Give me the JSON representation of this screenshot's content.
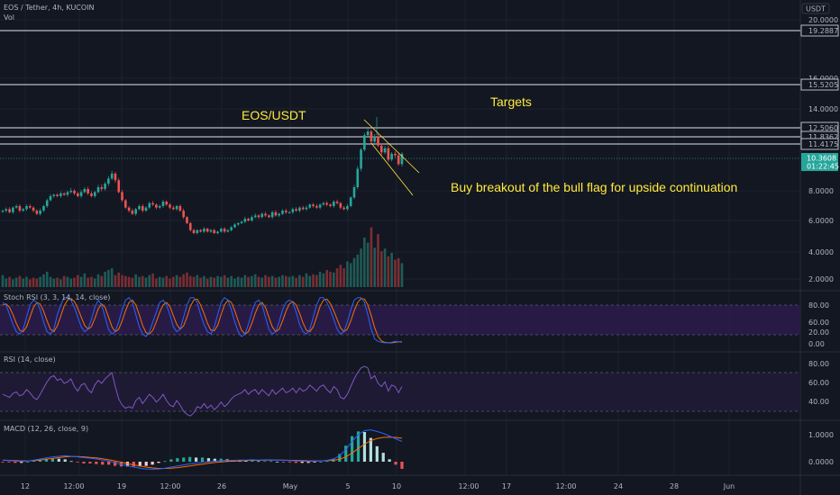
{
  "header": {
    "title": "EOS / Tether, 4h, KUCOIN",
    "vol_label": "Vol",
    "currency": "USDT"
  },
  "colors": {
    "bg": "#131722",
    "up": "#26a69a",
    "down": "#ef5350",
    "rsi": "#7e57c2",
    "stoch_k": "#2962ff",
    "stoch_d": "#ff6d00",
    "macd": "#2962ff",
    "signal": "#ff6d00",
    "annotation": "#ffeb3b",
    "price_tag": "#26a69a"
  },
  "annotations": {
    "title": "EOS/USDT",
    "targets": "Targets",
    "note": "Buy breakout of the bull flag for upside continuation"
  },
  "price_axis": {
    "ticks": [
      "20.0000",
      "16.0000",
      "14.0000",
      "8.0000",
      "6.0000",
      "4.0000",
      "2.0000"
    ],
    "levels": [
      "19.2887",
      "15.5205",
      "12.5060",
      "11.8362",
      "11.4175"
    ],
    "current": "10.3608",
    "countdown": "01:22:45"
  },
  "stoch": {
    "title": "Stoch RSI (3, 3, 14, 14, close)",
    "ticks": [
      "80.00",
      "60.00",
      "20.00",
      "0.00"
    ]
  },
  "rsi": {
    "title": "RSI (14, close)",
    "ticks": [
      "80.00",
      "60.00",
      "40.00"
    ]
  },
  "macd": {
    "title": "MACD (12, 26, close, 9)",
    "ticks": [
      "1.0000",
      "0.0000"
    ]
  },
  "time_axis": [
    "12",
    "12:00",
    "19",
    "12:00",
    "26",
    "May",
    "5",
    "10",
    "12:00",
    "17",
    "12:00",
    "24",
    "28",
    "Jun"
  ],
  "chart_data": {
    "type": "candlestick",
    "symbol": "EOS/USDT",
    "interval": "4h",
    "ylim": [
      1.5,
      22
    ],
    "horizontal_levels": [
      19.2887,
      15.5205,
      12.506,
      11.8362,
      11.4175
    ],
    "last_price": 10.3608,
    "close_series": [
      6.6,
      6.7,
      6.5,
      6.8,
      6.9,
      6.6,
      6.7,
      6.9,
      6.8,
      6.6,
      6.4,
      6.6,
      6.9,
      7.3,
      7.6,
      7.7,
      7.6,
      7.8,
      7.7,
      7.9,
      8.0,
      7.8,
      7.6,
      7.9,
      8.1,
      7.8,
      7.6,
      7.9,
      8.2,
      8.1,
      8.4,
      8.7,
      9.0,
      8.6,
      7.9,
      7.3,
      6.8,
      6.6,
      6.4,
      6.7,
      6.9,
      6.6,
      6.8,
      7.1,
      7.0,
      6.8,
      6.9,
      7.2,
      7.0,
      6.8,
      6.7,
      6.9,
      6.6,
      6.2,
      5.8,
      5.3,
      5.1,
      5.3,
      5.2,
      5.4,
      5.2,
      5.3,
      5.1,
      5.2,
      5.4,
      5.2,
      5.3,
      5.5,
      5.7,
      5.8,
      5.9,
      6.1,
      6.0,
      6.2,
      6.3,
      6.2,
      6.4,
      6.3,
      6.2,
      6.5,
      6.3,
      6.4,
      6.6,
      6.5,
      6.5,
      6.7,
      6.6,
      6.8,
      6.7,
      6.8,
      7.0,
      6.9,
      6.8,
      7.0,
      7.1,
      7.0,
      6.9,
      7.2,
      7.1,
      6.8,
      6.7,
      6.9,
      7.5,
      8.2,
      9.3,
      10.6,
      11.7,
      12.0,
      11.2,
      11.6,
      10.9,
      10.4,
      10.7,
      9.9,
      10.3,
      10.2,
      9.6,
      10.3
    ],
    "volume": [
      14,
      10,
      12,
      9,
      11,
      13,
      10,
      12,
      9,
      11,
      10,
      12,
      15,
      18,
      12,
      10,
      11,
      9,
      13,
      12,
      10,
      11,
      14,
      12,
      16,
      11,
      12,
      10,
      15,
      13,
      18,
      20,
      22,
      14,
      17,
      14,
      13,
      12,
      11,
      15,
      12,
      13,
      11,
      14,
      16,
      10,
      12,
      11,
      13,
      10,
      12,
      14,
      12,
      15,
      17,
      13,
      12,
      14,
      11,
      13,
      10,
      12,
      11,
      13,
      12,
      14,
      11,
      13,
      10,
      12,
      11,
      14,
      12,
      13,
      15,
      12,
      11,
      14,
      12,
      13,
      11,
      12,
      14,
      13,
      12,
      13,
      11,
      14,
      12,
      16,
      13,
      15,
      14,
      18,
      16,
      20,
      18,
      17,
      22,
      26,
      22,
      30,
      28,
      34,
      38,
      45,
      58,
      52,
      70,
      46,
      62,
      42,
      45,
      36,
      40,
      32,
      34,
      28
    ],
    "rsi": [
      52,
      50,
      48,
      53,
      55,
      50,
      52,
      58,
      54,
      48,
      45,
      52,
      60,
      68,
      74,
      76,
      70,
      72,
      66,
      68,
      72,
      62,
      56,
      64,
      66,
      58,
      54,
      64,
      70,
      66,
      72,
      76,
      80,
      62,
      46,
      38,
      34,
      36,
      34,
      44,
      48,
      40,
      46,
      52,
      48,
      42,
      46,
      52,
      44,
      38,
      36,
      44,
      38,
      30,
      26,
      24,
      28,
      36,
      34,
      40,
      34,
      38,
      32,
      36,
      42,
      36,
      40,
      46,
      50,
      52,
      54,
      58,
      52,
      56,
      58,
      52,
      58,
      54,
      50,
      58,
      52,
      56,
      60,
      54,
      56,
      60,
      54,
      60,
      56,
      58,
      64,
      60,
      56,
      62,
      64,
      58,
      54,
      62,
      58,
      48,
      46,
      52,
      62,
      72,
      80,
      86,
      88,
      86,
      72,
      76,
      66,
      62,
      68,
      56,
      64,
      62,
      54,
      62
    ],
    "stoch_k": [
      85,
      80,
      60,
      40,
      25,
      20,
      30,
      55,
      80,
      90,
      85,
      70,
      45,
      25,
      20,
      30,
      60,
      80,
      95,
      95,
      90,
      75,
      55,
      35,
      25,
      30,
      50,
      75,
      90,
      80,
      55,
      30,
      20,
      25,
      45,
      70,
      90,
      95,
      85,
      60,
      35,
      20,
      15,
      25,
      45,
      65,
      85,
      90,
      80,
      60,
      35,
      25,
      30,
      55,
      80,
      95,
      95,
      85,
      60,
      40,
      25,
      20,
      35,
      60,
      85,
      95,
      90,
      70,
      45,
      25,
      15,
      20,
      40,
      65,
      85,
      90,
      80,
      55,
      30,
      20,
      25,
      45,
      70,
      85,
      90,
      85,
      65,
      40,
      25,
      20,
      30,
      55,
      80,
      95,
      95,
      85,
      70,
      50,
      30,
      20,
      25,
      45,
      70,
      90,
      95,
      95,
      85,
      60,
      30,
      10,
      5,
      3,
      2,
      2,
      3,
      5,
      4,
      3
    ],
    "stoch_d": [
      80,
      82,
      75,
      60,
      42,
      28,
      25,
      35,
      55,
      75,
      85,
      82,
      67,
      47,
      30,
      25,
      37,
      57,
      78,
      90,
      93,
      87,
      73,
      55,
      38,
      30,
      35,
      52,
      72,
      82,
      75,
      55,
      35,
      25,
      30,
      47,
      68,
      85,
      90,
      80,
      60,
      38,
      23,
      20,
      28,
      45,
      65,
      80,
      85,
      77,
      58,
      40,
      30,
      37,
      55,
      77,
      90,
      92,
      80,
      62,
      42,
      28,
      27,
      38,
      60,
      80,
      90,
      85,
      68,
      47,
      28,
      20,
      25,
      42,
      63,
      80,
      85,
      75,
      55,
      35,
      25,
      30,
      47,
      67,
      82,
      87,
      80,
      63,
      43,
      28,
      25,
      35,
      55,
      77,
      90,
      92,
      83,
      68,
      50,
      33,
      25,
      30,
      47,
      68,
      85,
      93,
      92,
      80,
      58,
      33,
      15,
      6,
      3,
      2,
      2,
      3,
      4,
      4
    ],
    "macd": [
      0.05,
      0.04,
      0.02,
      0.01,
      0.03,
      0.06,
      0.1,
      0.14,
      0.18,
      0.2,
      0.22,
      0.2,
      0.18,
      0.15,
      0.13,
      0.1,
      0.06,
      0.02,
      -0.04,
      -0.1,
      -0.15,
      -0.2,
      -0.24,
      -0.27,
      -0.28,
      -0.27,
      -0.24,
      -0.2,
      -0.16,
      -0.12,
      -0.08,
      -0.05,
      -0.02,
      0,
      0.02,
      0.04,
      0.05,
      0.05,
      0.06,
      0.06,
      0.07,
      0.06,
      0.07,
      0.07,
      0.06,
      0.05,
      0.04,
      0.03,
      0.02,
      0.01,
      0.02,
      0.03,
      0.05,
      0.1,
      0.22,
      0.45,
      0.75,
      1.0,
      1.15,
      1.18,
      1.12,
      1.05,
      0.95,
      0.85,
      0.75
    ],
    "signal": [
      0.06,
      0.05,
      0.04,
      0.03,
      0.03,
      0.04,
      0.06,
      0.09,
      0.12,
      0.15,
      0.18,
      0.19,
      0.19,
      0.18,
      0.16,
      0.14,
      0.11,
      0.07,
      0.03,
      -0.02,
      -0.07,
      -0.12,
      -0.16,
      -0.2,
      -0.23,
      -0.25,
      -0.25,
      -0.24,
      -0.22,
      -0.19,
      -0.16,
      -0.12,
      -0.09,
      -0.06,
      -0.03,
      -0.01,
      0.01,
      0.02,
      0.03,
      0.04,
      0.05,
      0.05,
      0.06,
      0.06,
      0.06,
      0.06,
      0.05,
      0.05,
      0.04,
      0.03,
      0.03,
      0.03,
      0.04,
      0.05,
      0.09,
      0.18,
      0.32,
      0.49,
      0.65,
      0.78,
      0.86,
      0.9,
      0.91,
      0.9,
      0.87
    ]
  }
}
